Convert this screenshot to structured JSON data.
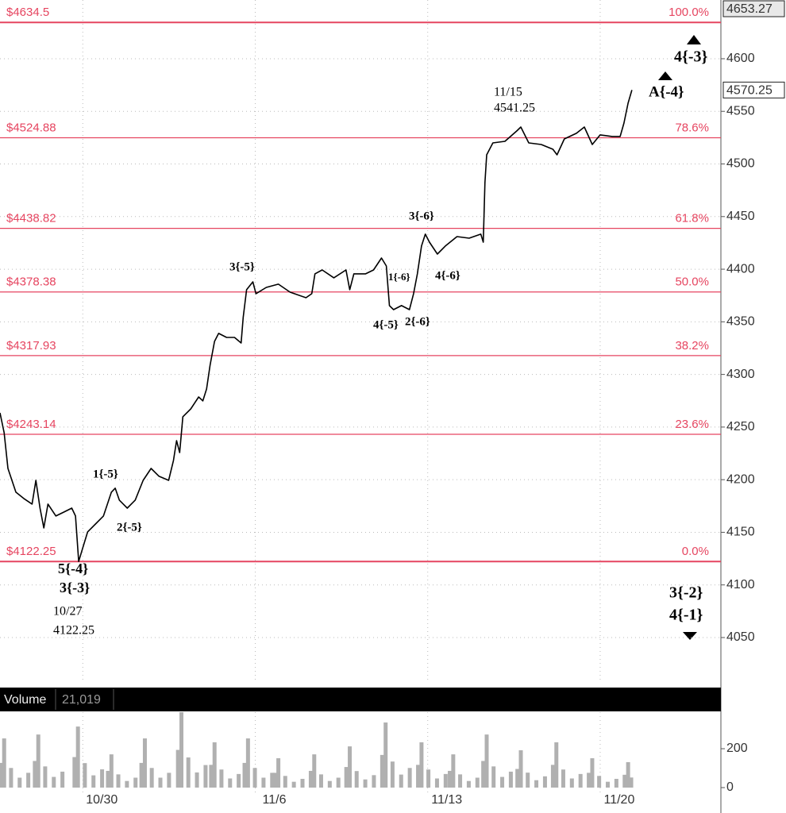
{
  "chart_data": [
    {
      "type": "line",
      "x": [
        -2.4,
        -2.28,
        -2.17,
        -1.94,
        -1.71,
        -1.47,
        -1.36,
        -1.24,
        -1.13,
        -1.01,
        -0.78,
        -0.55,
        -0.32,
        -0.21,
        -0.12,
        0.0,
        0.14,
        0.37,
        0.6,
        0.83,
        0.94,
        1.06,
        1.29,
        1.52,
        1.75,
        1.98,
        2.21,
        2.49,
        2.63,
        2.72,
        2.81,
        2.9,
        3.13,
        3.36,
        3.48,
        3.59,
        3.69,
        3.82,
        3.94,
        4.17,
        4.4,
        4.59,
        4.65,
        4.75,
        4.93,
        5.02,
        5.32,
        5.67,
        6.01,
        6.47,
        6.64,
        6.73,
        6.94,
        7.28,
        7.63,
        7.74,
        7.86,
        8.2,
        8.43,
        8.66,
        8.8,
        8.89,
        9.01,
        9.24,
        9.47,
        9.59,
        9.7,
        9.82,
        9.93,
        10.05,
        10.28,
        10.51,
        10.85,
        11.2,
        11.54,
        11.61,
        11.66,
        11.71,
        11.89,
        12.24,
        12.58,
        12.7,
        12.93,
        13.29,
        13.63,
        13.75,
        13.96,
        14.31,
        14.54,
        14.77,
        15.0,
        15.35,
        15.58,
        15.69,
        15.81,
        15.92
      ],
      "values": [
        4263.5,
        4244.7,
        4210.7,
        4188.1,
        4182.1,
        4176.8,
        4199.4,
        4173.0,
        4154.1,
        4176.8,
        4165.5,
        4169.2,
        4173.0,
        4165.5,
        4122.25,
        4135.3,
        4150.4,
        4157.9,
        4165.5,
        4188.1,
        4191.9,
        4180.6,
        4173.0,
        4180.6,
        4199.4,
        4210.7,
        4203.2,
        4199.4,
        4218.3,
        4237.1,
        4225.8,
        4259.8,
        4267.3,
        4278.6,
        4274.9,
        4286.2,
        4308.8,
        4331.4,
        4339.0,
        4335.2,
        4335.2,
        4329.9,
        4354.1,
        4380.5,
        4388.0,
        4376.7,
        4382.7,
        4385.8,
        4378.2,
        4372.9,
        4376.7,
        4395.6,
        4399.3,
        4391.8,
        4399.3,
        4380.5,
        4395.6,
        4395.6,
        4399.3,
        4410.6,
        4403.1,
        4365.4,
        4361.6,
        4365.4,
        4361.6,
        4376.7,
        4395.6,
        4422.0,
        4433.3,
        4425.7,
        4414.4,
        4422.0,
        4431.0,
        4429.5,
        4433.3,
        4425.7,
        4482.3,
        4508.7,
        4520.0,
        4521.5,
        4531.3,
        4535.1,
        4520.0,
        4518.5,
        4514.0,
        4508.7,
        4523.8,
        4529.1,
        4535.1,
        4518.5,
        4527.6,
        4526.1,
        4526.1,
        4538.9,
        4557.8,
        4570.25
      ],
      "color": "#000000",
      "xlim": [
        -2.4,
        18.5
      ],
      "xticks": [
        {
          "value": 0,
          "label": "10/30"
        },
        {
          "value": 5,
          "label": "11/6"
        },
        {
          "value": 10,
          "label": "11/13"
        },
        {
          "value": 15,
          "label": "11/20"
        }
      ],
      "ylim": [
        4008.5,
        4655.8
      ],
      "yticks": [
        4050,
        4100,
        4150,
        4200,
        4250,
        4300,
        4350,
        4400,
        4450,
        4500,
        4550,
        4600
      ],
      "grid": true,
      "price_markers": [
        4653.27,
        4570.25
      ],
      "fib_color": "#e64560",
      "fib_levels": [
        {
          "price": {
            "value": 4634.5,
            "label": "$4634.5"
          },
          "percent": "100.0%"
        },
        {
          "price": {
            "value": 4524.88,
            "label": "$4524.88"
          },
          "percent": "78.6%"
        },
        {
          "price": {
            "value": 4438.82,
            "label": "$4438.82"
          },
          "percent": "61.8%"
        },
        {
          "price": {
            "value": 4378.38,
            "label": "$4378.38"
          },
          "percent": "50.0%"
        },
        {
          "price": {
            "value": 4317.93,
            "label": "$4317.93"
          },
          "percent": "38.2%"
        },
        {
          "price": {
            "value": 4243.14,
            "label": "$4243.14"
          },
          "percent": "23.6%"
        },
        {
          "price": {
            "value": 4122.25,
            "label": "$4122.25"
          },
          "percent": "0.0%"
        }
      ],
      "annotations": [
        "11/15",
        "4541.25",
        "A{-4}",
        "4{-3}",
        "3{-5}",
        "3{-6}",
        "1{-6}",
        "4{-6}",
        "4{-5}",
        "2{-6}",
        "1{-5}",
        "2{-5}",
        "5{-4}",
        "3{-3}",
        "10/27",
        "4122.25",
        "3{-2}",
        "4{-1}"
      ]
    },
    {
      "type": "bar",
      "title": "Volume",
      "subtitle": "21,019",
      "color": "#b0b0b0",
      "x": [
        -2.38,
        -2.28,
        -2.08,
        -1.83,
        -1.58,
        -1.39,
        -1.29,
        -1.09,
        -0.84,
        -0.59,
        -0.24,
        -0.14,
        0.06,
        0.31,
        0.56,
        0.73,
        0.83,
        1.03,
        1.28,
        1.53,
        1.7,
        1.8,
        2.0,
        2.25,
        2.5,
        2.76,
        2.86,
        3.06,
        3.31,
        3.56,
        3.72,
        3.82,
        4.02,
        4.27,
        4.52,
        4.69,
        4.79,
        4.99,
        5.24,
        5.49,
        5.57,
        5.67,
        5.87,
        6.12,
        6.37,
        6.61,
        6.71,
        6.91,
        7.16,
        7.41,
        7.64,
        7.74,
        7.94,
        8.19,
        8.44,
        8.68,
        8.78,
        8.98,
        9.23,
        9.48,
        9.72,
        9.82,
        10.02,
        10.27,
        10.52,
        10.64,
        10.74,
        10.94,
        11.19,
        11.44,
        11.61,
        11.71,
        11.91,
        12.16,
        12.41,
        12.6,
        12.7,
        12.9,
        13.15,
        13.4,
        13.63,
        13.73,
        13.93,
        14.18,
        14.43,
        14.67,
        14.77,
        14.97,
        15.22,
        15.47,
        15.71,
        15.81,
        15.9
      ],
      "values": [
        127,
        253,
        101,
        51,
        76,
        137,
        273,
        109,
        55,
        82,
        157,
        314,
        126,
        63,
        94,
        86,
        171,
        68,
        34,
        51,
        127,
        253,
        101,
        51,
        76,
        194,
        388,
        155,
        78,
        116,
        117,
        233,
        93,
        47,
        70,
        127,
        253,
        101,
        51,
        76,
        76,
        151,
        60,
        30,
        45,
        86,
        171,
        68,
        34,
        51,
        106,
        212,
        85,
        42,
        64,
        168,
        335,
        134,
        67,
        101,
        117,
        233,
        93,
        47,
        70,
        86,
        171,
        68,
        34,
        51,
        137,
        273,
        109,
        55,
        82,
        96,
        192,
        77,
        38,
        58,
        117,
        233,
        93,
        47,
        70,
        76,
        151,
        60,
        30,
        45,
        66,
        131,
        52
      ],
      "ylim": [
        0,
        388
      ],
      "yticks": [
        0,
        200
      ]
    }
  ]
}
